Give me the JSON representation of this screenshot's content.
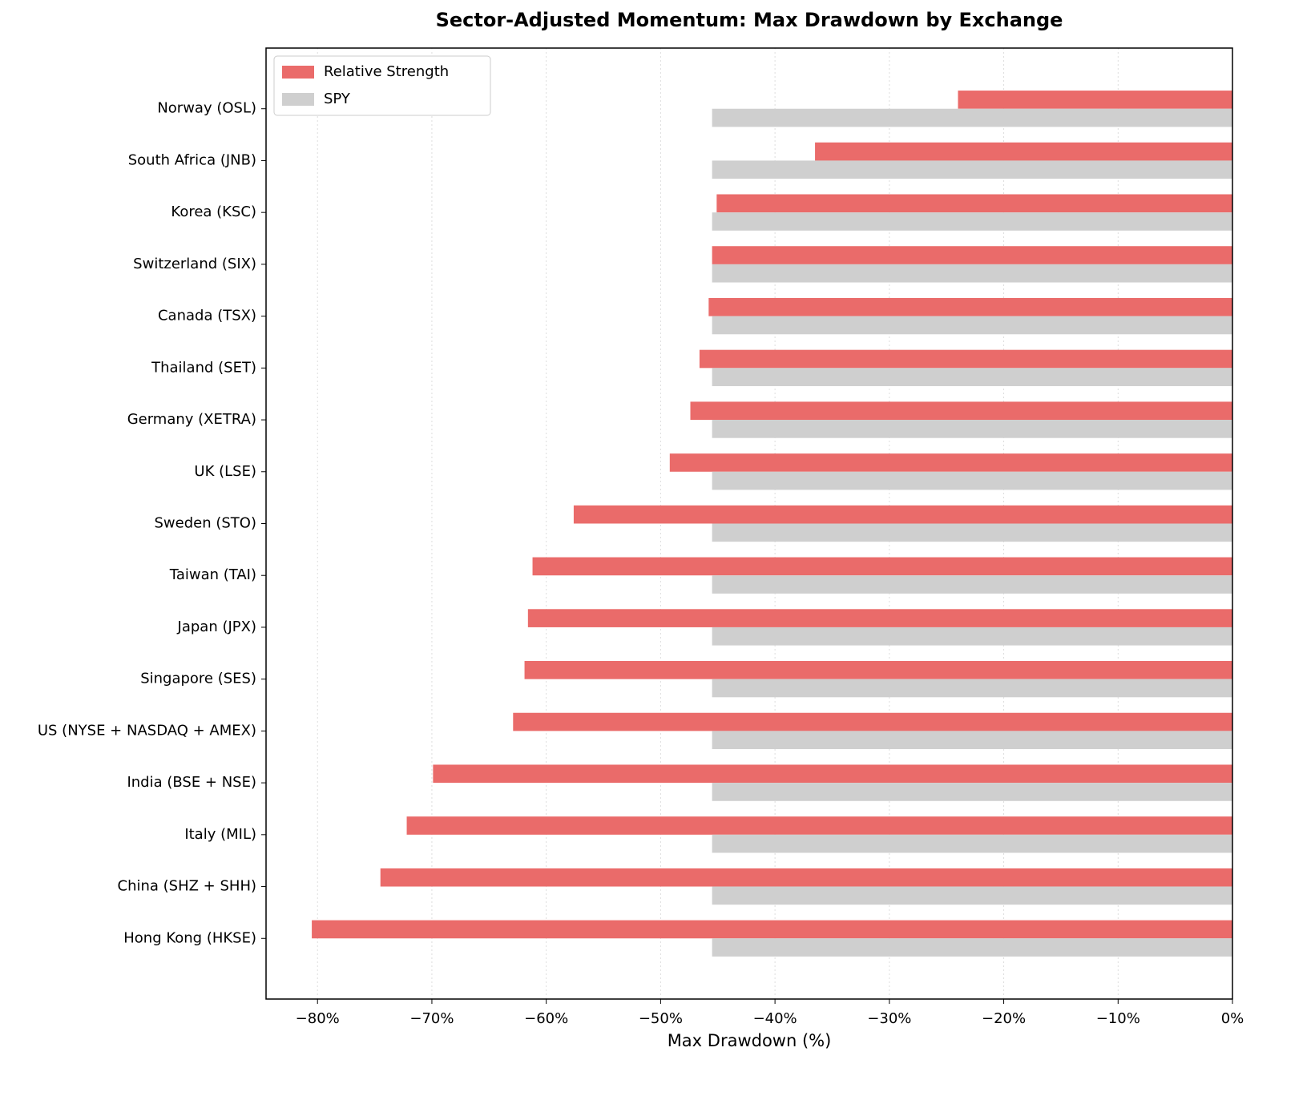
{
  "chart_data": {
    "type": "barh",
    "title": "Sector-Adjusted Momentum: Max Drawdown by Exchange",
    "xlabel": "Max Drawdown (%)",
    "categories": [
      "Norway (OSL)",
      "South Africa (JNB)",
      "Korea (KSC)",
      "Switzerland (SIX)",
      "Canada (TSX)",
      "Thailand (SET)",
      "Germany (XETRA)",
      "UK (LSE)",
      "Sweden (STO)",
      "Taiwan (TAI)",
      "Japan (JPX)",
      "Singapore (SES)",
      "US (NYSE + NASDAQ + AMEX)",
      "India (BSE + NSE)",
      "Italy (MIL)",
      "China (SHZ + SHH)",
      "Hong Kong (HKSE)"
    ],
    "series": [
      {
        "name": "Relative Strength",
        "color": "#ea6b6a",
        "values": [
          -24.0,
          -36.5,
          -45.1,
          -45.5,
          -45.8,
          -46.6,
          -47.4,
          -49.2,
          -57.6,
          -61.2,
          -61.6,
          -61.9,
          -62.9,
          -69.9,
          -72.2,
          -74.5,
          -80.5
        ]
      },
      {
        "name": "SPY",
        "color": "#cfcfcf",
        "values": [
          -45.5,
          -45.5,
          -45.5,
          -45.5,
          -45.5,
          -45.5,
          -45.5,
          -45.5,
          -45.5,
          -45.5,
          -45.5,
          -45.5,
          -45.5,
          -45.5,
          -45.5,
          -45.5,
          -45.5
        ]
      }
    ],
    "xlim": [
      -84.5,
      0
    ],
    "xticks": [
      {
        "value": -80,
        "label": "−80%"
      },
      {
        "value": -70,
        "label": "−70%"
      },
      {
        "value": -60,
        "label": "−60%"
      },
      {
        "value": -50,
        "label": "−50%"
      },
      {
        "value": -40,
        "label": "−40%"
      },
      {
        "value": -30,
        "label": "−30%"
      },
      {
        "value": -20,
        "label": "−20%"
      },
      {
        "value": -10,
        "label": "−10%"
      },
      {
        "value": 0,
        "label": "0%"
      }
    ],
    "grid": true,
    "legend": "upper left"
  }
}
